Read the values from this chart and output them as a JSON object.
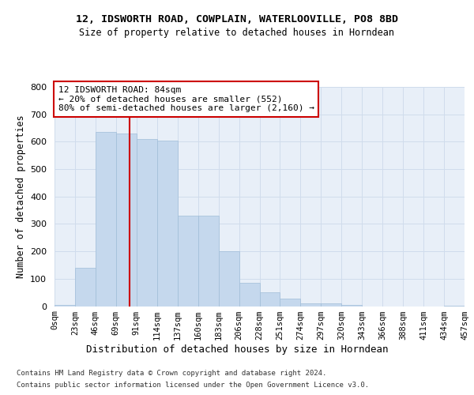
{
  "title": "12, IDSWORTH ROAD, COWPLAIN, WATERLOOVILLE, PO8 8BD",
  "subtitle": "Size of property relative to detached houses in Horndean",
  "xlabel": "Distribution of detached houses by size in Horndean",
  "ylabel": "Number of detached properties",
  "bar_values": [
    5,
    140,
    635,
    630,
    610,
    605,
    330,
    330,
    200,
    85,
    50,
    28,
    10,
    10,
    5,
    0,
    0,
    0,
    0,
    2
  ],
  "bin_edges": [
    0,
    23,
    46,
    69,
    92,
    115,
    138,
    161,
    184,
    207,
    230,
    253,
    276,
    299,
    322,
    345,
    368,
    391,
    414,
    437,
    460
  ],
  "x_labels": [
    "0sqm",
    "23sqm",
    "46sqm",
    "69sqm",
    "91sqm",
    "114sqm",
    "137sqm",
    "160sqm",
    "183sqm",
    "206sqm",
    "228sqm",
    "251sqm",
    "274sqm",
    "297sqm",
    "320sqm",
    "343sqm",
    "366sqm",
    "388sqm",
    "411sqm",
    "434sqm",
    "457sqm"
  ],
  "bar_color": "#c5d8ed",
  "bar_edge_color": "#a0bdd8",
  "grid_color": "#d0dcec",
  "background_color": "#e8eff8",
  "property_size": 84,
  "annotation_line1": "12 IDSWORTH ROAD: 84sqm",
  "annotation_line2": "← 20% of detached houses are smaller (552)",
  "annotation_line3": "80% of semi-detached houses are larger (2,160) →",
  "vline_color": "#cc0000",
  "annotation_box_color": "#ffffff",
  "annotation_box_edge_color": "#cc0000",
  "footer_line1": "Contains HM Land Registry data © Crown copyright and database right 2024.",
  "footer_line2": "Contains public sector information licensed under the Open Government Licence v3.0.",
  "ylim": [
    0,
    800
  ],
  "yticks": [
    0,
    100,
    200,
    300,
    400,
    500,
    600,
    700,
    800
  ]
}
